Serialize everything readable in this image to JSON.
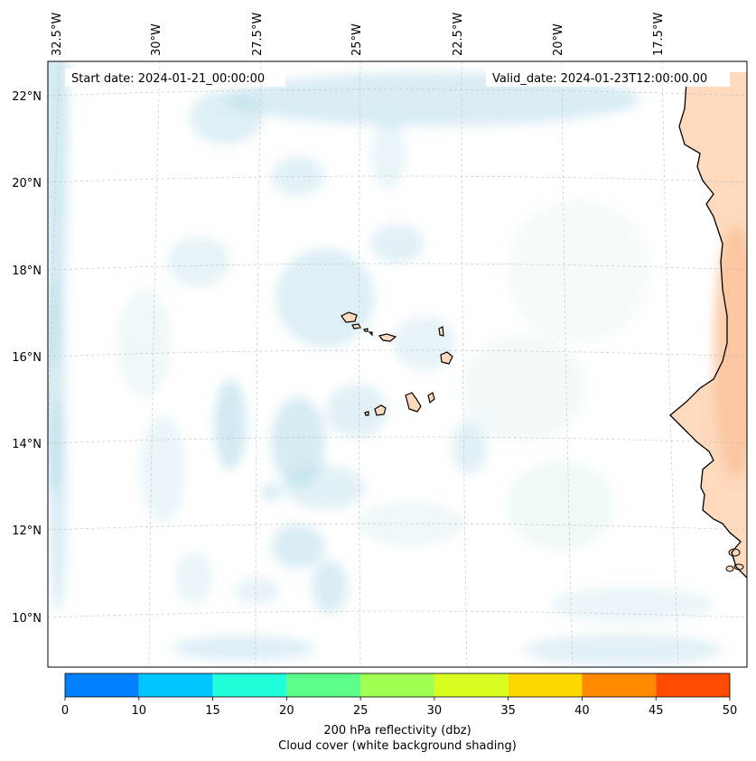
{
  "map": {
    "start_date": "Start date: 2024-01-21_00:00:00",
    "valid_date": "Valid_date: 2024-01-23T12:00:00.00",
    "lon_labels": [
      "32.5°W",
      "30°W",
      "27.5°W",
      "25°W",
      "22.5°W",
      "20°W",
      "17.5°W"
    ],
    "lat_labels": [
      "22°N",
      "20°N",
      "18°N",
      "16°N",
      "14°N",
      "12°N",
      "10°N"
    ],
    "colors": {
      "cloud": "#add8e6",
      "land": "#fdd9bd",
      "land_strong": "#f9c299",
      "coast": "#000000",
      "grid": "#bdbdbd"
    }
  },
  "colorbar": {
    "ticks": [
      "0",
      "10",
      "15",
      "20",
      "25",
      "30",
      "35",
      "40",
      "45",
      "50"
    ],
    "colors": [
      "#0080ff",
      "#00c5ff",
      "#20ffd9",
      "#5cff89",
      "#a0ff50",
      "#d9ff20",
      "#ffd800",
      "#ff8a00",
      "#ff4c00"
    ],
    "label_line1": "200 hPa reflectivity (dbz)",
    "label_line2": "Cloud cover (white background shading)"
  }
}
